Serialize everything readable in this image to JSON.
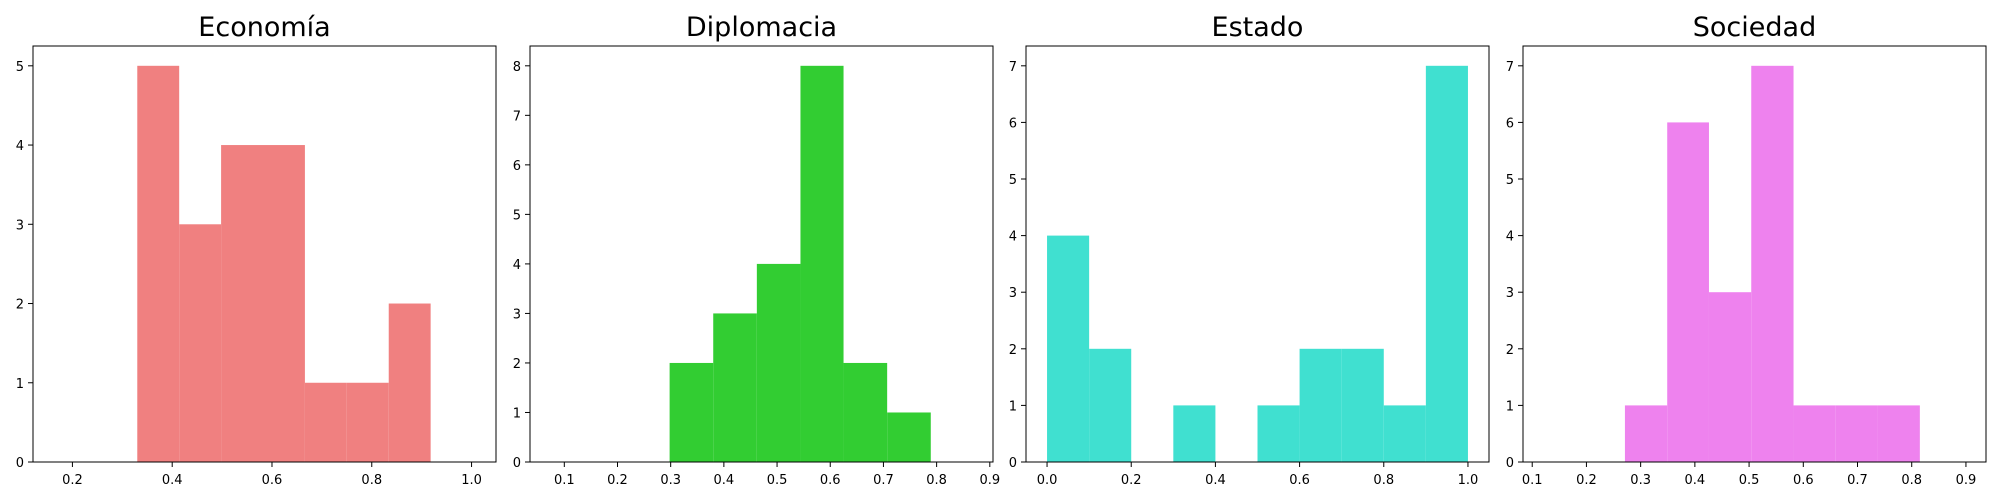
{
  "chart_data": [
    {
      "type": "bar",
      "title": "Economía",
      "color": "#f08080",
      "xlim": [
        0.121,
        1.049
      ],
      "ylim": [
        0,
        5.25
      ],
      "xticks": [
        0.2,
        0.4,
        0.6,
        0.8,
        1.0
      ],
      "xtick_labels": [
        "0.2",
        "0.4",
        "0.6",
        "0.8",
        "1.0"
      ],
      "yticks": [
        0,
        1,
        2,
        3,
        4,
        5
      ],
      "ytick_labels": [
        "0",
        "1",
        "2",
        "3",
        "4",
        "5"
      ],
      "bins": [
        {
          "x0": 0.33,
          "x1": 0.414,
          "count": 5
        },
        {
          "x0": 0.414,
          "x1": 0.498,
          "count": 3
        },
        {
          "x0": 0.498,
          "x1": 0.582,
          "count": 4
        },
        {
          "x0": 0.582,
          "x1": 0.666,
          "count": 4
        },
        {
          "x0": 0.666,
          "x1": 0.75,
          "count": 1
        },
        {
          "x0": 0.75,
          "x1": 0.834,
          "count": 1
        },
        {
          "x0": 0.834,
          "x1": 0.918,
          "count": 2
        }
      ]
    },
    {
      "type": "bar",
      "title": "Diplomacia",
      "color": "#32cd32",
      "xlim": [
        0.0355,
        0.906
      ],
      "ylim": [
        0,
        8.4
      ],
      "xticks": [
        0.1,
        0.2,
        0.3,
        0.4,
        0.5,
        0.6,
        0.7,
        0.8,
        0.9
      ],
      "xtick_labels": [
        "0.1",
        "0.2",
        "0.3",
        "0.4",
        "0.5",
        "0.6",
        "0.7",
        "0.8",
        "0.9"
      ],
      "yticks": [
        0,
        1,
        2,
        3,
        4,
        5,
        6,
        7,
        8
      ],
      "ytick_labels": [
        "0",
        "1",
        "2",
        "3",
        "4",
        "5",
        "6",
        "7",
        "8"
      ],
      "bins": [
        {
          "x0": 0.298,
          "x1": 0.38,
          "count": 2
        },
        {
          "x0": 0.38,
          "x1": 0.462,
          "count": 3
        },
        {
          "x0": 0.462,
          "x1": 0.544,
          "count": 4
        },
        {
          "x0": 0.544,
          "x1": 0.625,
          "count": 8
        },
        {
          "x0": 0.625,
          "x1": 0.707,
          "count": 2
        },
        {
          "x0": 0.707,
          "x1": 0.789,
          "count": 1
        }
      ]
    },
    {
      "type": "bar",
      "title": "Estado",
      "color": "#40e0d0",
      "xlim": [
        -0.05,
        1.05
      ],
      "ylim": [
        0,
        7.35
      ],
      "xticks": [
        0.0,
        0.2,
        0.4,
        0.6,
        0.8,
        1.0
      ],
      "xtick_labels": [
        "0.0",
        "0.2",
        "0.4",
        "0.6",
        "0.8",
        "1.0"
      ],
      "yticks": [
        0,
        1,
        2,
        3,
        4,
        5,
        6,
        7
      ],
      "ytick_labels": [
        "0",
        "1",
        "2",
        "3",
        "4",
        "5",
        "6",
        "7"
      ],
      "bins": [
        {
          "x0": 0.0,
          "x1": 0.1,
          "count": 4
        },
        {
          "x0": 0.1,
          "x1": 0.2,
          "count": 2
        },
        {
          "x0": 0.3,
          "x1": 0.4,
          "count": 1
        },
        {
          "x0": 0.5,
          "x1": 0.6,
          "count": 1
        },
        {
          "x0": 0.6,
          "x1": 0.7,
          "count": 2
        },
        {
          "x0": 0.7,
          "x1": 0.8,
          "count": 2
        },
        {
          "x0": 0.8,
          "x1": 0.9,
          "count": 1
        },
        {
          "x0": 0.9,
          "x1": 1.0,
          "count": 7
        }
      ]
    },
    {
      "type": "bar",
      "title": "Sociedad",
      "color": "#ee82ee",
      "xlim": [
        0.083,
        0.937
      ],
      "ylim": [
        0,
        7.35
      ],
      "xticks": [
        0.1,
        0.2,
        0.3,
        0.4,
        0.5,
        0.6,
        0.7,
        0.8,
        0.9
      ],
      "xtick_labels": [
        "0.1",
        "0.2",
        "0.3",
        "0.4",
        "0.5",
        "0.6",
        "0.7",
        "0.8",
        "0.9"
      ],
      "yticks": [
        0,
        1,
        2,
        3,
        4,
        5,
        6,
        7
      ],
      "ytick_labels": [
        "0",
        "1",
        "2",
        "3",
        "4",
        "5",
        "6",
        "7"
      ],
      "bins": [
        {
          "x0": 0.271,
          "x1": 0.349,
          "count": 1
        },
        {
          "x0": 0.349,
          "x1": 0.426,
          "count": 6
        },
        {
          "x0": 0.426,
          "x1": 0.504,
          "count": 3
        },
        {
          "x0": 0.504,
          "x1": 0.582,
          "count": 7
        },
        {
          "x0": 0.582,
          "x1": 0.659,
          "count": 1
        },
        {
          "x0": 0.659,
          "x1": 0.737,
          "count": 1
        },
        {
          "x0": 0.737,
          "x1": 0.815,
          "count": 1
        }
      ]
    }
  ]
}
